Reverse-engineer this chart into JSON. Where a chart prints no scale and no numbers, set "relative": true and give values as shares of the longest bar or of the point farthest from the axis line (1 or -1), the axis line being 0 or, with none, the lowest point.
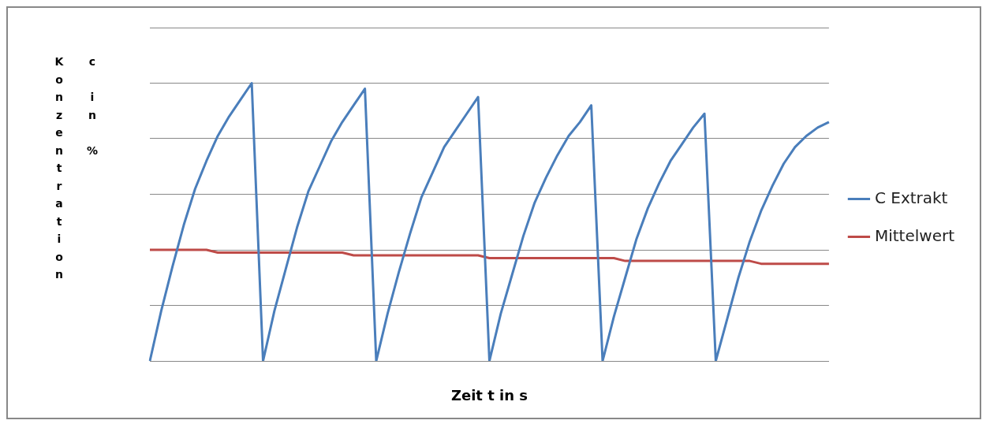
{
  "chart_data": {
    "type": "line",
    "relative": true,
    "xlabel": "Zeit t in s",
    "ylabel": "Konzentration c in %",
    "grid": "y",
    "legend": "right",
    "marker": "none",
    "line_style": "solid",
    "categories": [
      null,
      null,
      null,
      null,
      null,
      null,
      null,
      null,
      null,
      null,
      null,
      null,
      null,
      null,
      null,
      null,
      null,
      null,
      null,
      null,
      null,
      null,
      null,
      null,
      null,
      null,
      null,
      null,
      null,
      null,
      null,
      null,
      null,
      null,
      null,
      null,
      null,
      null,
      null,
      null,
      null,
      null,
      null,
      null,
      null,
      null,
      null,
      null,
      null,
      null,
      null,
      null,
      null,
      null,
      null,
      null,
      null,
      null,
      null,
      null,
      null
    ],
    "series": [
      {
        "name": "C Extrakt",
        "color": "#4a7ebb",
        "values": [
          0,
          0.18,
          0.34,
          0.49,
          0.62,
          0.72,
          0.81,
          0.88,
          0.94,
          1,
          0,
          0.18,
          0.33,
          0.48,
          0.61,
          0.7,
          0.79,
          0.86,
          0.92,
          0.98,
          0,
          0.17,
          0.32,
          0.46,
          0.59,
          0.68,
          0.77,
          0.83,
          0.89,
          0.95,
          0,
          0.17,
          0.31,
          0.45,
          0.57,
          0.66,
          0.74,
          0.81,
          0.86,
          0.92,
          0,
          0.16,
          0.3,
          0.44,
          0.55,
          0.64,
          0.72,
          0.78,
          0.84,
          0.89,
          0,
          0.15,
          0.3,
          0.43,
          0.54,
          0.63,
          0.71,
          0.77,
          0.81,
          0.84,
          0.86
        ]
      },
      {
        "name": "Mittelwert",
        "color": "#be4b48",
        "values": [
          0.4,
          0.4,
          0.4,
          0.4,
          0.4,
          0.4,
          0.39,
          0.39,
          0.39,
          0.39,
          0.39,
          0.39,
          0.39,
          0.39,
          0.39,
          0.39,
          0.39,
          0.39,
          0.38,
          0.38,
          0.38,
          0.38,
          0.38,
          0.38,
          0.38,
          0.38,
          0.38,
          0.38,
          0.38,
          0.38,
          0.37,
          0.37,
          0.37,
          0.37,
          0.37,
          0.37,
          0.37,
          0.37,
          0.37,
          0.37,
          0.37,
          0.37,
          0.36,
          0.36,
          0.36,
          0.36,
          0.36,
          0.36,
          0.36,
          0.36,
          0.36,
          0.36,
          0.36,
          0.36,
          0.35,
          0.35,
          0.35,
          0.35,
          0.35,
          0.35,
          0.35
        ]
      }
    ]
  }
}
